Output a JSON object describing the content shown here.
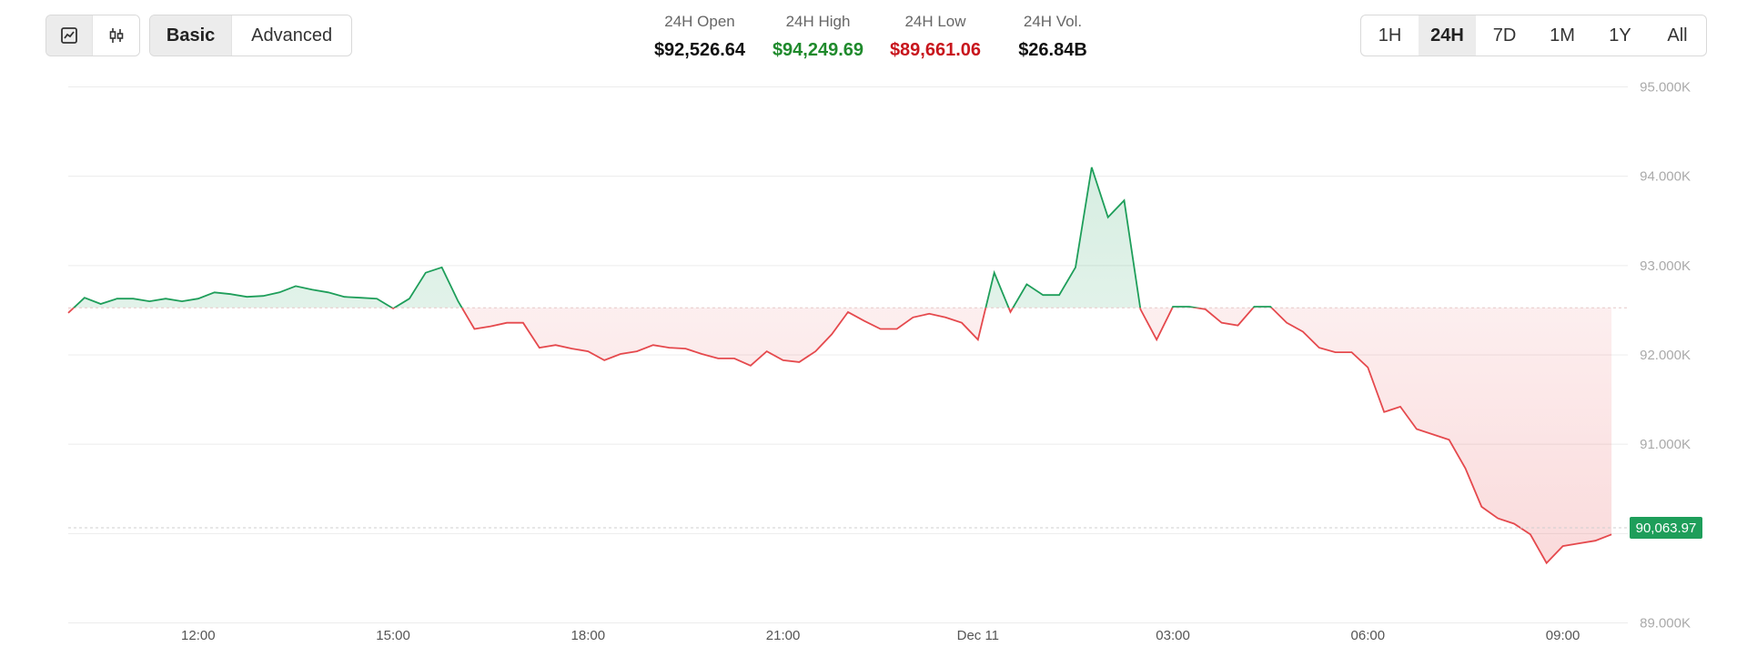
{
  "toolbar": {
    "views": [
      "Basic",
      "Advanced"
    ],
    "ranges": [
      "1H",
      "24H",
      "7D",
      "1M",
      "1Y",
      "All"
    ]
  },
  "stats": [
    {
      "label": "24H Open",
      "value": 92526.64,
      "value_label": "$92,526.64",
      "color": "#111111"
    },
    {
      "label": "24H High",
      "value": 94249.69,
      "value_label": "$94,249.69",
      "color": "#1f8a2c"
    },
    {
      "label": "24H Low",
      "value": 89661.06,
      "value_label": "$89,661.06",
      "color": "#c8161d"
    },
    {
      "label": "24H Vol.",
      "value": 26840000000,
      "value_label": "$26.84B",
      "color": "#111111"
    }
  ],
  "chart_data": {
    "type": "line",
    "x": [
      "10:00",
      "10:15",
      "10:30",
      "10:45",
      "11:00",
      "11:15",
      "11:30",
      "11:45",
      "12:00",
      "12:15",
      "12:30",
      "12:45",
      "13:00",
      "13:15",
      "13:30",
      "13:45",
      "14:00",
      "14:15",
      "14:30",
      "14:45",
      "15:00",
      "15:15",
      "15:30",
      "15:45",
      "16:00",
      "16:15",
      "16:30",
      "16:45",
      "17:00",
      "17:15",
      "17:30",
      "17:45",
      "18:00",
      "18:15",
      "18:30",
      "18:45",
      "19:00",
      "19:15",
      "19:30",
      "19:45",
      "20:00",
      "20:15",
      "20:30",
      "20:45",
      "21:00",
      "21:15",
      "21:30",
      "21:45",
      "22:00",
      "22:15",
      "22:30",
      "22:45",
      "23:00",
      "23:15",
      "23:30",
      "23:45",
      "Dec 11",
      "00:15",
      "00:30",
      "00:45",
      "01:00",
      "01:15",
      "01:30",
      "01:45",
      "02:00",
      "02:15",
      "02:30",
      "02:45",
      "03:00",
      "03:15",
      "03:30",
      "03:45",
      "04:00",
      "04:15",
      "04:30",
      "04:45",
      "05:00",
      "05:15",
      "05:30",
      "05:45",
      "06:00",
      "06:15",
      "06:30",
      "06:45",
      "07:00",
      "07:15",
      "07:30",
      "07:45",
      "08:00",
      "08:15",
      "08:30",
      "08:45",
      "09:00",
      "09:15",
      "09:30",
      "09:45"
    ],
    "values": [
      92470,
      92640,
      92570,
      92630,
      92630,
      92600,
      92630,
      92600,
      92630,
      92700,
      92680,
      92650,
      92660,
      92700,
      92770,
      92730,
      92700,
      92650,
      92640,
      92630,
      92520,
      92630,
      92920,
      92980,
      92600,
      92290,
      92320,
      92360,
      92360,
      92080,
      92110,
      92070,
      92040,
      91940,
      92010,
      92040,
      92110,
      92080,
      92070,
      92010,
      91960,
      91960,
      91880,
      92040,
      91940,
      91920,
      92040,
      92230,
      92480,
      92380,
      92290,
      92290,
      92420,
      92460,
      92420,
      92360,
      92170,
      92920,
      92480,
      92790,
      92670,
      92670,
      92980,
      94100,
      93540,
      93730,
      92510,
      92170,
      92540,
      92540,
      92510,
      92360,
      92330,
      92540,
      92540,
      92360,
      92260,
      92080,
      92030,
      92030,
      91860,
      91360,
      91420,
      91170,
      91110,
      91050,
      90730,
      90300,
      90170,
      90110,
      89990,
      89670,
      89860,
      89890,
      89920,
      89990
    ],
    "up_color": "#1e9e5a",
    "down_color": "#e5494d",
    "xticks": [
      "12:00",
      "15:00",
      "18:00",
      "21:00",
      "Dec 11",
      "03:00",
      "06:00",
      "09:00"
    ],
    "ylim": [
      89000,
      95000
    ],
    "yticks": [
      {
        "value": 89000,
        "label": "89.000K"
      },
      {
        "value": 90000,
        "label": "90.000K"
      },
      {
        "value": 91000,
        "label": "91.000K"
      },
      {
        "value": 92000,
        "label": "92.000K"
      },
      {
        "value": 93000,
        "label": "93.000K"
      },
      {
        "value": 94000,
        "label": "94.000K"
      },
      {
        "value": 95000,
        "label": "95.000K"
      }
    ],
    "grid": true,
    "last": {
      "value": 90063.97,
      "label": "90,063.97",
      "color": "#1e9e5a"
    }
  }
}
